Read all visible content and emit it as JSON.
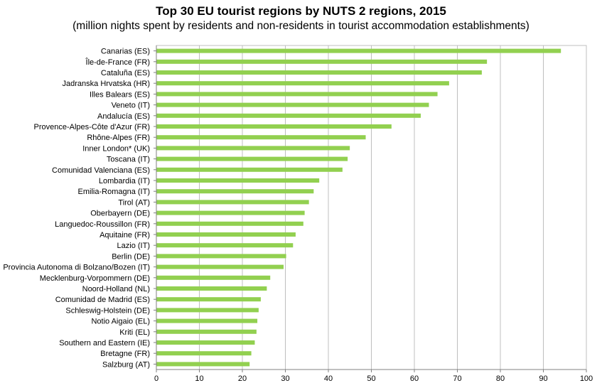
{
  "chart_data": {
    "type": "bar",
    "orientation": "horizontal",
    "title": "Top 30 EU tourist regions by NUTS 2 regions, 2015",
    "subtitle": "(million nights spent by residents and non-residents in tourist accommodation establishments)",
    "xlabel": "",
    "ylabel": "",
    "xlim": [
      0,
      100
    ],
    "xticks": [
      0,
      10,
      20,
      30,
      40,
      50,
      60,
      70,
      80,
      90,
      100
    ],
    "grid": true,
    "bar_color": "#92d050",
    "categories": [
      "Canarias (ES)",
      "Île-de-France (FR)",
      "Cataluña (ES)",
      "Jadranska Hrvatska (HR)",
      "Illes Balears (ES)",
      "Veneto (IT)",
      "Andalucía (ES)",
      "Provence-Alpes-Côte d'Azur (FR)",
      "Rhône-Alpes (FR)",
      "Inner London* (UK)",
      "Toscana (IT)",
      "Comunidad Valenciana (ES)",
      "Lombardia (IT)",
      "Emilia-Romagna (IT)",
      "Tirol (AT)",
      "Oberbayern (DE)",
      "Languedoc-Roussillon (FR)",
      "Aquitaine (FR)",
      "Lazio (IT)",
      "Berlin (DE)",
      "Provincia Autonoma di Bolzano/Bozen (IT)",
      "Mecklenburg-Vorpommern (DE)",
      "Noord-Holland (NL)",
      "Comunidad de Madrid (ES)",
      "Schleswig-Holstein (DE)",
      "Notio Aigaio (EL)",
      "Kriti (EL)",
      "Southern and Eastern (IE)",
      "Bretagne (FR)",
      "Salzburg (AT)"
    ],
    "values": [
      94.0,
      76.8,
      75.6,
      68.0,
      65.3,
      63.3,
      61.4,
      54.6,
      48.6,
      44.9,
      44.4,
      43.2,
      37.8,
      36.5,
      35.4,
      34.4,
      34.1,
      32.3,
      31.7,
      30.1,
      29.5,
      26.4,
      25.6,
      24.2,
      23.7,
      23.4,
      23.2,
      22.8,
      22.0,
      21.6
    ]
  }
}
